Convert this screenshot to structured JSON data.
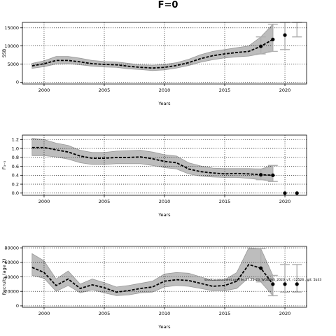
{
  "page": {
    "title": "F=0",
    "annotation": "stockassessment.org (lle.27.21-23_WGBFAS_2020_v7, r12526 , git: 5b33"
  },
  "chart_data": [
    {
      "type": "line",
      "title": "",
      "xlabel": "Years",
      "ylabel": "SSB",
      "xlim": [
        1998.2,
        2021.8
      ],
      "ylim": [
        -500,
        16500
      ],
      "xticks": [
        2000,
        2005,
        2010,
        2015,
        2020
      ],
      "yticks": [
        0,
        5000,
        10000,
        15000
      ],
      "ytick_labels": [
        "0",
        "5000",
        "10000",
        "15000"
      ],
      "grid": true,
      "series": [
        {
          "role": "estimate",
          "x": [
            1999,
            2000,
            2001,
            2002,
            2003,
            2004,
            2005,
            2006,
            2007,
            2008,
            2009,
            2010,
            2011,
            2012,
            2013,
            2014,
            2015,
            2016,
            2017,
            2018,
            2019
          ],
          "values": [
            4500,
            5100,
            6000,
            6000,
            5600,
            5100,
            4900,
            4800,
            4400,
            4100,
            3900,
            4100,
            4600,
            5400,
            6500,
            7300,
            7800,
            8200,
            8500,
            9900,
            11800
          ],
          "lower": [
            3800,
            4300,
            5000,
            5100,
            4800,
            4400,
            4200,
            4100,
            3700,
            3500,
            3200,
            3400,
            3900,
            4600,
            5500,
            6200,
            6700,
            7000,
            7200,
            7800,
            8500
          ],
          "upper": [
            5200,
            5900,
            7100,
            7100,
            6600,
            6000,
            5700,
            5600,
            5200,
            4800,
            4700,
            4900,
            5400,
            6300,
            7600,
            8500,
            9000,
            9500,
            10000,
            12500,
            16000
          ]
        },
        {
          "role": "forecast",
          "x": [
            2020
          ],
          "values": [
            13000
          ],
          "lower": [
            9000
          ],
          "upper": [
            16500
          ]
        }
      ],
      "forecast_range": {
        "x": [
          2021
        ],
        "lower": [
          12500
        ],
        "upper": [
          16500
        ]
      },
      "estimate_markers_x": [
        2018,
        2019
      ]
    },
    {
      "type": "line",
      "title": "",
      "xlabel": "Years",
      "ylabel": "F₃₋₅",
      "xlim": [
        1998.2,
        2021.8
      ],
      "ylim": [
        -0.05,
        1.3
      ],
      "xticks": [
        2000,
        2005,
        2010,
        2015,
        2020
      ],
      "yticks": [
        0,
        0.2,
        0.4,
        0.6,
        0.8,
        1.0,
        1.2
      ],
      "ytick_labels": [
        "0.0",
        "0.2",
        "0.4",
        "0.6",
        "0.8",
        "1.0",
        "1.2"
      ],
      "grid": true,
      "series": [
        {
          "role": "estimate",
          "x": [
            1999,
            2000,
            2001,
            2002,
            2003,
            2004,
            2005,
            2006,
            2007,
            2008,
            2009,
            2010,
            2011,
            2012,
            2013,
            2014,
            2015,
            2016,
            2017,
            2018,
            2019
          ],
          "values": [
            1.02,
            1.02,
            0.97,
            0.92,
            0.83,
            0.78,
            0.78,
            0.8,
            0.8,
            0.81,
            0.77,
            0.71,
            0.68,
            0.54,
            0.48,
            0.45,
            0.43,
            0.44,
            0.43,
            0.41,
            0.4
          ],
          "lower": [
            0.84,
            0.84,
            0.81,
            0.76,
            0.68,
            0.64,
            0.64,
            0.66,
            0.66,
            0.66,
            0.62,
            0.57,
            0.54,
            0.43,
            0.38,
            0.36,
            0.35,
            0.35,
            0.33,
            0.3,
            0.26
          ],
          "upper": [
            1.23,
            1.2,
            1.12,
            1.07,
            0.96,
            0.91,
            0.91,
            0.94,
            0.95,
            0.96,
            0.92,
            0.86,
            0.83,
            0.68,
            0.61,
            0.56,
            0.55,
            0.55,
            0.55,
            0.54,
            0.62
          ]
        },
        {
          "role": "forecast",
          "x": [
            2020,
            2021
          ],
          "values": [
            0.0,
            0.0
          ],
          "lower": [
            0.0,
            0.0
          ],
          "upper": [
            0.0,
            0.0
          ]
        }
      ],
      "estimate_markers_x": [
        2018,
        2019
      ]
    },
    {
      "type": "line",
      "title": "",
      "xlabel": "Years",
      "ylabel": "Recruits (age 2)",
      "xlim": [
        1998.2,
        2021.8
      ],
      "ylim": [
        -2000,
        82000
      ],
      "xticks": [
        2000,
        2005,
        2010,
        2015,
        2020
      ],
      "yticks": [
        0,
        20000,
        40000,
        60000,
        80000
      ],
      "ytick_labels": [
        "0",
        "20000",
        "40000",
        "60000",
        "80000"
      ],
      "grid": true,
      "series": [
        {
          "role": "estimate",
          "x": [
            1999,
            2000,
            2001,
            2002,
            2003,
            2004,
            2005,
            2006,
            2007,
            2008,
            2009,
            2010,
            2011,
            2012,
            2013,
            2014,
            2015,
            2016,
            2017,
            2018,
            2019
          ],
          "values": [
            53000,
            46000,
            28000,
            37000,
            24000,
            29000,
            25000,
            19000,
            21000,
            24000,
            26000,
            34000,
            36000,
            35000,
            31000,
            27000,
            28000,
            34000,
            57000,
            52000,
            30000
          ],
          "lower": [
            42000,
            38000,
            20000,
            28000,
            18000,
            22000,
            18000,
            14000,
            15000,
            18000,
            19000,
            26000,
            28000,
            27000,
            24000,
            21000,
            21000,
            24000,
            39000,
            33000,
            14000
          ],
          "upper": [
            72000,
            62000,
            37000,
            48000,
            30000,
            37000,
            32000,
            26000,
            28000,
            31000,
            34000,
            44000,
            46000,
            45000,
            40000,
            35000,
            36000,
            46000,
            80000,
            79000,
            42000
          ]
        },
        {
          "role": "forecast",
          "x": [
            2020,
            2021
          ],
          "values": [
            30000,
            30000
          ],
          "lower": [
            19000,
            19000
          ],
          "upper": [
            57000,
            57000
          ]
        }
      ],
      "estimate_markers_x": [
        2018,
        2019
      ]
    }
  ]
}
